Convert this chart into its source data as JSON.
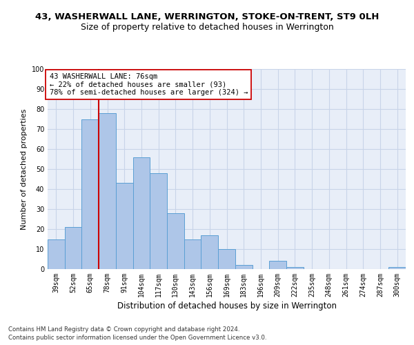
{
  "title1": "43, WASHERWALL LANE, WERRINGTON, STOKE-ON-TRENT, ST9 0LH",
  "title2": "Size of property relative to detached houses in Werrington",
  "xlabel": "Distribution of detached houses by size in Werrington",
  "ylabel": "Number of detached properties",
  "bar_labels": [
    "39sqm",
    "52sqm",
    "65sqm",
    "78sqm",
    "91sqm",
    "104sqm",
    "117sqm",
    "130sqm",
    "143sqm",
    "156sqm",
    "169sqm",
    "183sqm",
    "196sqm",
    "209sqm",
    "222sqm",
    "235sqm",
    "248sqm",
    "261sqm",
    "274sqm",
    "287sqm",
    "300sqm"
  ],
  "bar_values": [
    15,
    21,
    75,
    78,
    43,
    56,
    48,
    28,
    15,
    17,
    10,
    2,
    0,
    4,
    1,
    0,
    0,
    0,
    0,
    0,
    1
  ],
  "bar_color": "#aec6e8",
  "bar_edge_color": "#5a9fd4",
  "vline_color": "#cc0000",
  "annotation_text": "43 WASHERWALL LANE: 76sqm\n← 22% of detached houses are smaller (93)\n78% of semi-detached houses are larger (324) →",
  "annotation_box_color": "#ffffff",
  "annotation_box_edge": "#cc0000",
  "ylim": [
    0,
    100
  ],
  "yticks": [
    0,
    10,
    20,
    30,
    40,
    50,
    60,
    70,
    80,
    90,
    100
  ],
  "grid_color": "#c8d4e8",
  "bg_color": "#e8eef8",
  "footnote1": "Contains HM Land Registry data © Crown copyright and database right 2024.",
  "footnote2": "Contains public sector information licensed under the Open Government Licence v3.0.",
  "title1_fontsize": 9.5,
  "title2_fontsize": 9,
  "xlabel_fontsize": 8.5,
  "ylabel_fontsize": 8,
  "tick_fontsize": 7,
  "annot_fontsize": 7.5
}
